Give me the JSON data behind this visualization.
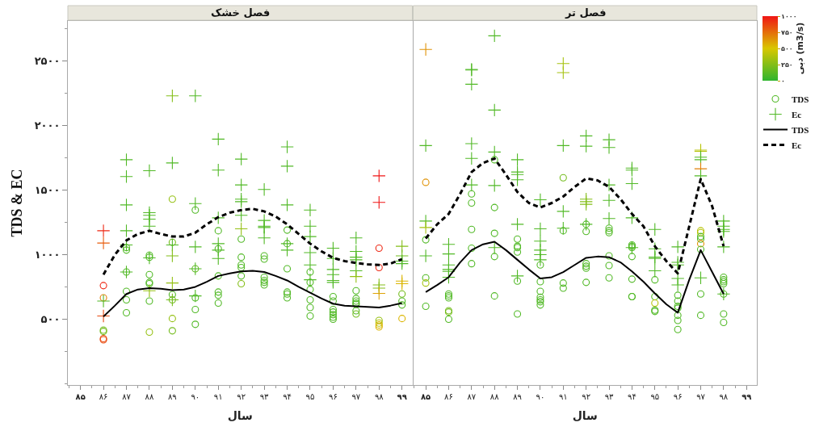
{
  "chart_data": [
    {
      "type": "scatter",
      "title": "فصل خشک",
      "xlabel": "سال",
      "ylabel": "TDS & EC",
      "xlim": [
        84.45,
        99.45
      ],
      "xticks": [
        {
          "value": 84.5,
          "label": null
        },
        {
          "value": 85,
          "label": "۸۵"
        },
        {
          "value": 85.5,
          "label": null
        },
        {
          "value": 86,
          "label": "۸۶"
        },
        {
          "value": 86.5,
          "label": null
        },
        {
          "value": 87,
          "label": "۸۷"
        },
        {
          "value": 87.5,
          "label": null
        },
        {
          "value": 88,
          "label": "۸۸"
        },
        {
          "value": 88.5,
          "label": null
        },
        {
          "value": 89,
          "label": "۸۹"
        },
        {
          "value": 89.5,
          "label": null
        },
        {
          "value": 90,
          "label": "۹۰"
        },
        {
          "value": 90.5,
          "label": null
        },
        {
          "value": 91,
          "label": "۹۱"
        },
        {
          "value": 91.5,
          "label": null
        },
        {
          "value": 92,
          "label": "۹۲"
        },
        {
          "value": 92.5,
          "label": null
        },
        {
          "value": 93,
          "label": "۹۳"
        },
        {
          "value": 93.5,
          "label": null
        },
        {
          "value": 94,
          "label": "۹۴"
        },
        {
          "value": 94.5,
          "label": null
        },
        {
          "value": 95,
          "label": "۹۵"
        },
        {
          "value": 95.5,
          "label": null
        },
        {
          "value": 96,
          "label": "۹۶"
        },
        {
          "value": 96.5,
          "label": null
        },
        {
          "value": 97,
          "label": "۹۷"
        },
        {
          "value": 97.5,
          "label": null
        },
        {
          "value": 98,
          "label": "۹۸"
        },
        {
          "value": 98.5,
          "label": null
        },
        {
          "value": 99,
          "label": "۹۹"
        }
      ],
      "ylim": [
        -10,
        2810
      ],
      "yticks": [
        {
          "value": 0,
          "label": null
        },
        {
          "value": 250,
          "label": null
        },
        {
          "value": 500,
          "label": "۵۰۰"
        },
        {
          "value": 750,
          "label": null
        },
        {
          "value": 1000,
          "label": "۱۰۰۰"
        },
        {
          "value": 1250,
          "label": null
        },
        {
          "value": 1500,
          "label": "۱۵۰۰"
        },
        {
          "value": 1750,
          "label": null
        },
        {
          "value": 2000,
          "label": "۲۰۰۰"
        },
        {
          "value": 2250,
          "label": null
        },
        {
          "value": 2500,
          "label": "۲۵۰۰"
        },
        {
          "value": 2750,
          "label": null
        }
      ],
      "legend": "right",
      "series": [
        {
          "name": "TDS",
          "marker": "circle",
          "x": [
            86,
            86,
            86,
            86,
            86,
            86,
            87,
            87,
            87,
            87,
            87,
            87,
            88,
            88,
            88,
            88,
            88,
            88,
            88,
            89,
            89,
            89,
            89,
            89,
            89,
            90,
            90,
            90,
            90,
            90,
            91,
            91,
            91,
            91,
            91,
            91,
            92,
            92,
            92,
            92,
            92,
            92,
            93,
            93,
            93,
            93,
            93,
            93,
            94,
            94,
            94,
            94,
            94,
            94,
            95,
            95,
            95,
            95,
            95,
            95,
            96,
            96,
            96,
            96,
            96,
            96,
            96,
            97,
            97,
            97,
            97,
            97,
            97,
            97,
            98,
            98,
            98,
            98,
            98,
            98,
            99,
            99,
            99,
            99
          ],
          "values": [
            760,
            665,
            415,
            405,
            350,
            340,
            1055,
            1035,
            865,
            715,
            650,
            550,
            995,
            980,
            845,
            785,
            775,
            640,
            400,
            1430,
            1095,
            690,
            650,
            505,
            410,
            1345,
            890,
            665,
            575,
            460,
            1185,
            1045,
            835,
            710,
            685,
            625,
            1120,
            980,
            920,
            900,
            835,
            775,
            990,
            965,
            825,
            800,
            785,
            765,
            1190,
            1085,
            890,
            710,
            695,
            665,
            865,
            785,
            730,
            650,
            590,
            525,
            675,
            640,
            575,
            555,
            535,
            515,
            500,
            720,
            660,
            640,
            625,
            615,
            565,
            540,
            1050,
            900,
            490,
            470,
            455,
            440,
            695,
            640,
            610,
            505
          ],
          "colors": [
            "#ee2713",
            "#e28008",
            "#73bc1c",
            "#73bc1c",
            "#e94a0f",
            "#e94a0f",
            "#51b926",
            "#51b926",
            "#51b926",
            "#51b926",
            "#51b926",
            "#51b926",
            "#51b926",
            "#51b926",
            "#51b926",
            "#51b926",
            "#51b926",
            "#51b926",
            "#95c013",
            "#95c013",
            "#73bc1c",
            "#51b926",
            "#73bc1c",
            "#95c013",
            "#73bc1c",
            "#51b926",
            "#62ba21",
            "#51b926",
            "#51b926",
            "#51b926",
            "#51b926",
            "#51b926",
            "#51b926",
            "#51b926",
            "#51b926",
            "#51b926",
            "#51b926",
            "#51b926",
            "#51b926",
            "#51b926",
            "#51b926",
            "#84be18",
            "#51b926",
            "#51b926",
            "#51b926",
            "#51b926",
            "#51b926",
            "#51b926",
            "#51b926",
            "#51b926",
            "#51b926",
            "#51b926",
            "#51b926",
            "#51b926",
            "#51b926",
            "#51b926",
            "#51b926",
            "#51b926",
            "#51b926",
            "#51b926",
            "#51b926",
            "#51b926",
            "#51b926",
            "#51b926",
            "#51b926",
            "#51b926",
            "#51b926",
            "#51b926",
            "#51b926",
            "#51b926",
            "#51b926",
            "#51b926",
            "#51b926",
            "#73bc1c",
            "#ee2713",
            "#ee2713",
            "#95c013",
            "#b7c309",
            "#dbb502",
            "#dbb502",
            "#73bc1c",
            "#51b926",
            "#51b926",
            "#dbb502"
          ]
        },
        {
          "name": "Ec",
          "marker": "cross",
          "x": [
            86,
            86,
            86,
            86,
            87,
            87,
            87,
            87,
            87,
            87,
            88,
            88,
            88,
            88,
            88,
            88,
            88,
            89,
            89,
            89,
            89,
            89,
            89,
            90,
            90,
            90,
            90,
            90,
            91,
            91,
            91,
            91,
            91,
            91,
            92,
            92,
            92,
            92,
            92,
            92,
            93,
            93,
            93,
            93,
            93,
            94,
            94,
            94,
            94,
            94,
            95,
            95,
            95,
            95,
            95,
            95,
            96,
            96,
            96,
            96,
            96,
            96,
            97,
            97,
            97,
            97,
            97,
            97,
            98,
            98,
            98,
            98,
            98,
            99,
            99,
            99,
            99,
            99,
            99
          ],
          "values": [
            1185,
            1090,
            640,
            525,
            1735,
            1605,
            1385,
            1185,
            1075,
            865,
            1650,
            1325,
            1305,
            1275,
            1220,
            975,
            720,
            2230,
            1710,
            1075,
            990,
            780,
            650,
            2230,
            1395,
            1060,
            890,
            680,
            1895,
            1655,
            1285,
            1085,
            1035,
            970,
            1740,
            1540,
            1430,
            1410,
            1305,
            1200,
            1505,
            1265,
            1220,
            1210,
            1130,
            1835,
            1685,
            1385,
            1085,
            1035,
            1345,
            1220,
            1140,
            1015,
            920,
            805,
            1050,
            970,
            885,
            845,
            800,
            785,
            1130,
            1025,
            980,
            960,
            875,
            830,
            1610,
            1405,
            765,
            740,
            700,
            1065,
            990,
            950,
            930,
            795,
            775
          ],
          "colors": [
            "#ee2713",
            "#e75c0d",
            "#51b926",
            "#e94a0f",
            "#51b926",
            "#51b926",
            "#51b926",
            "#51b926",
            "#51b926",
            "#51b926",
            "#51b926",
            "#51b926",
            "#51b926",
            "#51b926",
            "#51b926",
            "#51b926",
            "#95c013",
            "#84be18",
            "#51b926",
            "#51b926",
            "#84be18",
            "#95c013",
            "#73bc1c",
            "#51b926",
            "#51b926",
            "#51b926",
            "#51b926",
            "#51b926",
            "#51b926",
            "#51b926",
            "#51b926",
            "#51b926",
            "#51b926",
            "#51b926",
            "#51b926",
            "#51b926",
            "#51b926",
            "#51b926",
            "#51b926",
            "#95c013",
            "#51b926",
            "#51b926",
            "#51b926",
            "#51b926",
            "#51b926",
            "#51b926",
            "#51b926",
            "#51b926",
            "#51b926",
            "#51b926",
            "#51b926",
            "#51b926",
            "#51b926",
            "#51b926",
            "#51b926",
            "#51b926",
            "#51b926",
            "#51b926",
            "#51b926",
            "#51b926",
            "#51b926",
            "#51b926",
            "#51b926",
            "#51b926",
            "#51b926",
            "#51b926",
            "#51b926",
            "#95c013",
            "#f01515",
            "#f01515",
            "#84be18",
            "#84be18",
            "#dea304",
            "#84be18",
            "#73bc1c",
            "#51b926",
            "#51b926",
            "#dbb502",
            "#dbb502"
          ]
        },
        {
          "name": "TDS",
          "type": "line",
          "color": "#000000",
          "line_style": "solid",
          "x": [
            86,
            86.5,
            87,
            87.5,
            88,
            88.5,
            89,
            89.5,
            90,
            90.5,
            91,
            91.5,
            92,
            92.5,
            93,
            93.5,
            94,
            94.5,
            95,
            95.5,
            96,
            96.5,
            97,
            97.5,
            98,
            98.5,
            99
          ],
          "values": [
            520,
            605,
            695,
            730,
            740,
            735,
            725,
            730,
            750,
            790,
            835,
            855,
            870,
            875,
            865,
            835,
            800,
            750,
            705,
            660,
            620,
            605,
            600,
            595,
            590,
            605,
            625
          ]
        },
        {
          "name": "Ec",
          "type": "line",
          "color": "#000000",
          "line_style": "dashed",
          "x": [
            86,
            86.5,
            87,
            87.5,
            88,
            88.5,
            89,
            89.5,
            90,
            90.5,
            91,
            91.5,
            92,
            92.5,
            93,
            93.5,
            94,
            94.5,
            95,
            95.5,
            96,
            96.5,
            97,
            97.5,
            98,
            98.5,
            99
          ],
          "values": [
            845,
            1000,
            1110,
            1160,
            1185,
            1160,
            1140,
            1140,
            1170,
            1235,
            1290,
            1325,
            1345,
            1355,
            1335,
            1295,
            1235,
            1160,
            1085,
            1025,
            975,
            950,
            935,
            925,
            920,
            930,
            965
          ]
        }
      ]
    },
    {
      "type": "scatter",
      "title": "فصل تر",
      "xlabel": "سال",
      "xlim": [
        84.45,
        99.45
      ],
      "xticks": [
        {
          "value": 84.5,
          "label": null
        },
        {
          "value": 85,
          "label": "۸۵"
        },
        {
          "value": 85.5,
          "label": null
        },
        {
          "value": 86,
          "label": "۸۶"
        },
        {
          "value": 86.5,
          "label": null
        },
        {
          "value": 87,
          "label": "۸۷"
        },
        {
          "value": 87.5,
          "label": null
        },
        {
          "value": 88,
          "label": "۸۸"
        },
        {
          "value": 88.5,
          "label": null
        },
        {
          "value": 89,
          "label": "۸۹"
        },
        {
          "value": 89.5,
          "label": null
        },
        {
          "value": 90,
          "label": "۹۰"
        },
        {
          "value": 90.5,
          "label": null
        },
        {
          "value": 91,
          "label": "۹۱"
        },
        {
          "value": 91.5,
          "label": null
        },
        {
          "value": 92,
          "label": "۹۲"
        },
        {
          "value": 92.5,
          "label": null
        },
        {
          "value": 93,
          "label": "۹۳"
        },
        {
          "value": 93.5,
          "label": null
        },
        {
          "value": 94,
          "label": "۹۴"
        },
        {
          "value": 94.5,
          "label": null
        },
        {
          "value": 95,
          "label": "۹۵"
        },
        {
          "value": 95.5,
          "label": null
        },
        {
          "value": 96,
          "label": "۹۶"
        },
        {
          "value": 96.5,
          "label": null
        },
        {
          "value": 97,
          "label": "۹۷"
        },
        {
          "value": 97.5,
          "label": null
        },
        {
          "value": 98,
          "label": "۹۸"
        },
        {
          "value": 98.5,
          "label": null
        },
        {
          "value": 99,
          "label": "۹۹"
        }
      ],
      "ylim": [
        -10,
        2810
      ],
      "tick_labels": "x",
      "clabel": "دبی (m3/s)",
      "clim": [
        0,
        1000
      ],
      "cticks": [
        {
          "value": 0,
          "label": "۰"
        },
        {
          "value": 250,
          "label": "۲۵۰"
        },
        {
          "value": 500,
          "label": "۵۰۰"
        },
        {
          "value": 750,
          "label": "۷۵۰"
        },
        {
          "value": 1000,
          "label": "۱۰۰۰"
        }
      ],
      "legend": "right",
      "series": [
        {
          "marker": "circle",
          "x": [
            85,
            85,
            85,
            85,
            85,
            86,
            86,
            86,
            86,
            86,
            86,
            87,
            87,
            87,
            87,
            87,
            88,
            88,
            88,
            88,
            88,
            89,
            89,
            89,
            89,
            89,
            89,
            90,
            90,
            90,
            90,
            90,
            90,
            90,
            91,
            91,
            91,
            91,
            92,
            92,
            92,
            92,
            92,
            92,
            93,
            93,
            93,
            93,
            93,
            93,
            94,
            94,
            94,
            94,
            94,
            94,
            94,
            95,
            95,
            95,
            95,
            95,
            96,
            96,
            96,
            96,
            96,
            96,
            96,
            97,
            97,
            97,
            97,
            97,
            97,
            97,
            97,
            98,
            98,
            98,
            98,
            98,
            98,
            98
          ],
          "values": [
            1115,
            1560,
            820,
            780,
            600,
            695,
            680,
            665,
            565,
            555,
            500,
            1470,
            1400,
            1195,
            1050,
            930,
            1735,
            1365,
            1165,
            985,
            680,
            1120,
            1065,
            1055,
            1020,
            795,
            540,
            920,
            790,
            715,
            670,
            650,
            635,
            610,
            1595,
            1185,
            780,
            740,
            1235,
            1180,
            930,
            910,
            895,
            785,
            1205,
            1185,
            1170,
            990,
            915,
            820,
            1075,
            1065,
            1055,
            985,
            810,
            675,
            675,
            805,
            675,
            625,
            570,
            560,
            685,
            640,
            600,
            585,
            530,
            490,
            420,
            1185,
            1170,
            1140,
            1120,
            1085,
            1040,
            695,
            530,
            825,
            805,
            790,
            775,
            695,
            540,
            475
          ],
          "colors": [
            "#51b926",
            "#e09206",
            "#51b926",
            "#a6c20e",
            "#51b926",
            "#51b926",
            "#51b926",
            "#51b926",
            "#73bc1c",
            "#73bc1c",
            "#51b926",
            "#51b926",
            "#51b926",
            "#51b926",
            "#51b926",
            "#51b926",
            "#51b926",
            "#51b926",
            "#51b926",
            "#51b926",
            "#51b926",
            "#51b926",
            "#51b926",
            "#51b926",
            "#51b926",
            "#51b926",
            "#51b926",
            "#51b926",
            "#51b926",
            "#51b926",
            "#51b926",
            "#51b926",
            "#51b926",
            "#51b926",
            "#73bc1c",
            "#51b926",
            "#51b926",
            "#51b926",
            "#51b926",
            "#51b926",
            "#51b926",
            "#51b926",
            "#51b926",
            "#51b926",
            "#51b926",
            "#51b926",
            "#51b926",
            "#51b926",
            "#51b926",
            "#51b926",
            "#51b926",
            "#51b926",
            "#51b926",
            "#51b926",
            "#51b926",
            "#51b926",
            "#51b926",
            "#51b926",
            "#51b926",
            "#b7c309",
            "#51b926",
            "#51b926",
            "#51b926",
            "#51b926",
            "#51b926",
            "#51b926",
            "#51b926",
            "#51b926",
            "#51b926",
            "#b7c309",
            "#b7c309",
            "#51b926",
            "#51b926",
            "#e09206",
            "#51b926",
            "#51b926",
            "#51b926",
            "#51b926",
            "#51b926",
            "#51b926",
            "#51b926",
            "#51b926",
            "#51b926",
            "#51b926"
          ]
        },
        {
          "marker": "cross",
          "x": [
            85,
            85,
            85,
            85,
            85,
            86,
            86,
            86,
            86,
            86,
            86,
            87,
            87,
            87,
            87,
            87,
            87,
            88,
            88,
            88,
            88,
            88,
            89,
            89,
            89,
            89,
            89,
            89,
            90,
            90,
            90,
            90,
            90,
            90,
            91,
            91,
            91,
            91,
            91,
            92,
            92,
            92,
            92,
            92,
            92,
            93,
            93,
            93,
            93,
            93,
            94,
            94,
            94,
            94,
            94,
            95,
            95,
            95,
            95,
            95,
            96,
            96,
            96,
            96,
            96,
            97,
            97,
            97,
            97,
            97,
            97,
            97,
            98,
            98,
            98,
            98,
            98,
            98
          ],
          "values": [
            1845,
            2590,
            1260,
            1210,
            990,
            1080,
            1005,
            920,
            885,
            870,
            825,
            2435,
            2430,
            2320,
            1860,
            1745,
            1540,
            2695,
            2120,
            1795,
            1535,
            1055,
            1735,
            1640,
            1620,
            1580,
            1235,
            835,
            1425,
            1200,
            1105,
            1035,
            1000,
            960,
            2480,
            2410,
            1845,
            1335,
            1205,
            1920,
            1840,
            1430,
            1410,
            1390,
            1235,
            1890,
            1830,
            1540,
            1420,
            1280,
            1670,
            1655,
            1550,
            1285,
            1055,
            1195,
            1045,
            980,
            970,
            875,
            1060,
            940,
            920,
            815,
            765,
            1810,
            1800,
            1755,
            1735,
            1665,
            1610,
            820,
            1260,
            1220,
            1195,
            1180,
            1060,
            695
          ],
          "colors": [
            "#51b926",
            "#e09206",
            "#51b926",
            "#a6c20e",
            "#51b926",
            "#51b926",
            "#51b926",
            "#51b926",
            "#51b926",
            "#51b926",
            "#51b926",
            "#51b926",
            "#51b926",
            "#51b926",
            "#51b926",
            "#51b926",
            "#51b926",
            "#51b926",
            "#51b926",
            "#51b926",
            "#51b926",
            "#51b926",
            "#51b926",
            "#51b926",
            "#51b926",
            "#51b926",
            "#51b926",
            "#51b926",
            "#51b926",
            "#51b926",
            "#51b926",
            "#51b926",
            "#51b926",
            "#51b926",
            "#a6c20e",
            "#a6c20e",
            "#51b926",
            "#51b926",
            "#51b926",
            "#51b926",
            "#51b926",
            "#84be18",
            "#84be18",
            "#84be18",
            "#51b926",
            "#51b926",
            "#51b926",
            "#51b926",
            "#51b926",
            "#51b926",
            "#51b926",
            "#51b926",
            "#51b926",
            "#51b926",
            "#51b926",
            "#51b926",
            "#51b926",
            "#51b926",
            "#51b926",
            "#51b926",
            "#51b926",
            "#51b926",
            "#51b926",
            "#51b926",
            "#51b926",
            "#b7c309",
            "#b7c309",
            "#51b926",
            "#51b926",
            "#e28008",
            "#51b926",
            "#51b926",
            "#51b926",
            "#51b926",
            "#51b926",
            "#51b926",
            "#51b926",
            "#51b926"
          ]
        },
        {
          "name": "TDS",
          "type": "line",
          "color": "#000000",
          "line_style": "solid",
          "x": [
            85,
            85.5,
            86,
            86.5,
            87,
            87.5,
            88,
            88.5,
            89,
            89.5,
            90,
            90.5,
            91,
            91.5,
            92,
            92.5,
            93,
            93.5,
            94,
            94.5,
            95,
            95.5,
            96,
            96.5,
            97,
            97.5,
            98
          ],
          "values": [
            710,
            765,
            825,
            940,
            1035,
            1080,
            1100,
            1035,
            960,
            885,
            815,
            825,
            865,
            920,
            975,
            985,
            980,
            940,
            870,
            790,
            700,
            615,
            550,
            805,
            1035,
            865,
            695
          ]
        },
        {
          "name": "Ec",
          "type": "line",
          "color": "#000000",
          "line_style": "dashed",
          "x": [
            85,
            85.5,
            86,
            86.5,
            87,
            87.5,
            88,
            88.5,
            89,
            89.5,
            90,
            90.5,
            91,
            91.5,
            92,
            92.5,
            93,
            93.5,
            94,
            94.5,
            95,
            95.5,
            96,
            96.5,
            97,
            97.5,
            98
          ],
          "values": [
            1125,
            1235,
            1315,
            1470,
            1640,
            1710,
            1745,
            1620,
            1485,
            1400,
            1365,
            1400,
            1450,
            1525,
            1590,
            1575,
            1525,
            1430,
            1315,
            1220,
            1065,
            950,
            855,
            1220,
            1585,
            1375,
            1065
          ]
        }
      ]
    }
  ]
}
